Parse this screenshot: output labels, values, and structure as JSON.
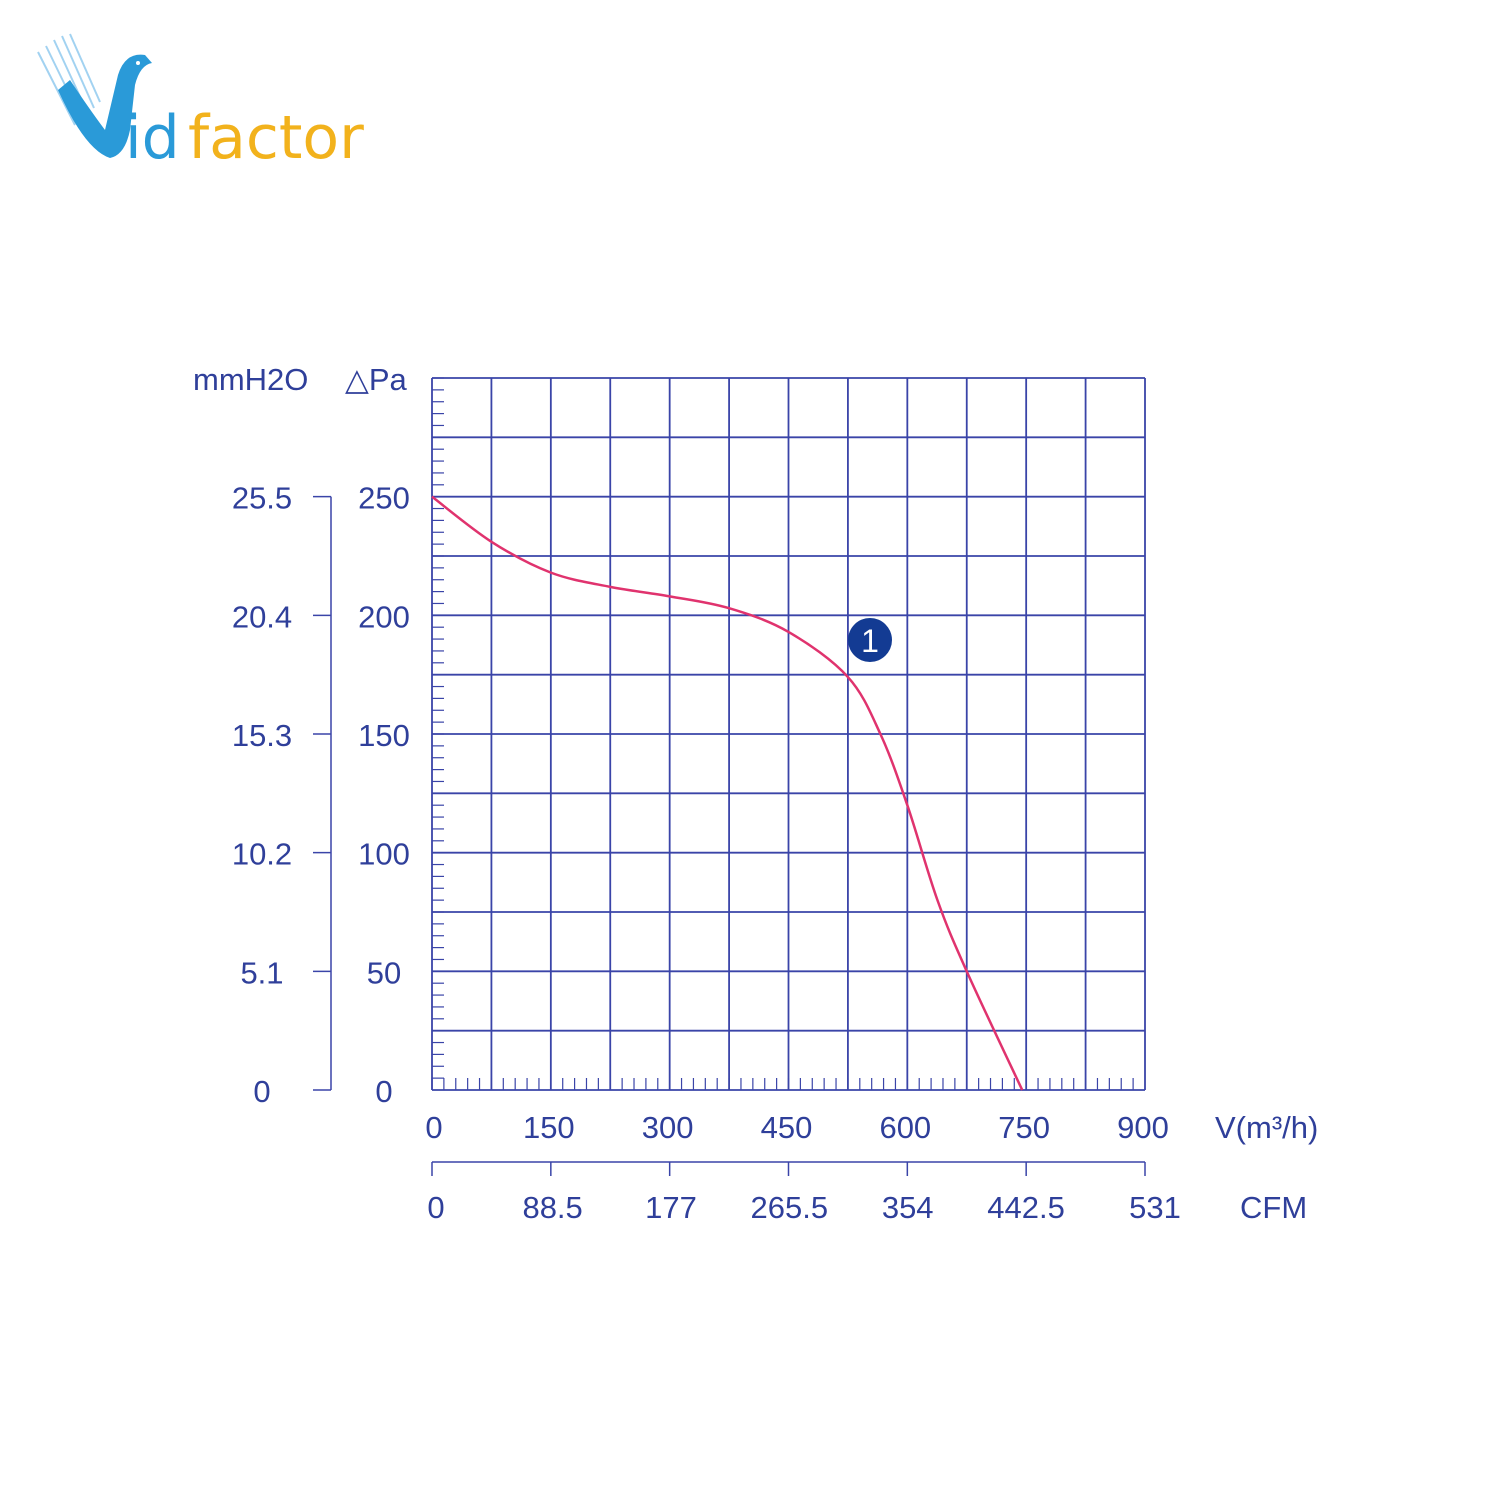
{
  "logo": {
    "text_blue": "Vid",
    "text_orange": "factor",
    "colors": {
      "blue": "#2a9ad8",
      "orange": "#f2b21c"
    }
  },
  "chart_data": {
    "type": "line",
    "title": "",
    "xlabel": "V(m³/h)",
    "xlabel_secondary": "CFM",
    "ylabel": "△Pa",
    "ylabel_secondary": "mmH2O",
    "xlim": [
      0,
      900
    ],
    "ylim": [
      0,
      300
    ],
    "grid": true,
    "x_ticks": [
      "0",
      "150",
      "300",
      "450",
      "600",
      "750",
      "900"
    ],
    "x_tick_values": [
      0,
      150,
      300,
      450,
      600,
      750,
      900
    ],
    "x_ticks_secondary": [
      "0",
      "88.5",
      "177",
      "265.5",
      "354",
      "442.5",
      "531"
    ],
    "y_ticks": [
      "0",
      "50",
      "100",
      "150",
      "200",
      "250"
    ],
    "y_tick_values": [
      0,
      50,
      100,
      150,
      200,
      250
    ],
    "y_ticks_secondary": [
      "0",
      "5.1",
      "10.2",
      "15.3",
      "20.4",
      "25.5"
    ],
    "series": [
      {
        "label_marker": "1",
        "color": "#e0336e",
        "x": [
          0,
          75,
          150,
          225,
          300,
          375,
          450,
          525,
          566,
          600,
          638,
          675,
          745
        ],
        "y": [
          250,
          231,
          218,
          212,
          208,
          203,
          193,
          174,
          150,
          120,
          80,
          50,
          0
        ]
      }
    ],
    "colors": {
      "axis": "#3a44a8",
      "grid": "#3a44a8",
      "marker_badge": "#133b93"
    }
  }
}
